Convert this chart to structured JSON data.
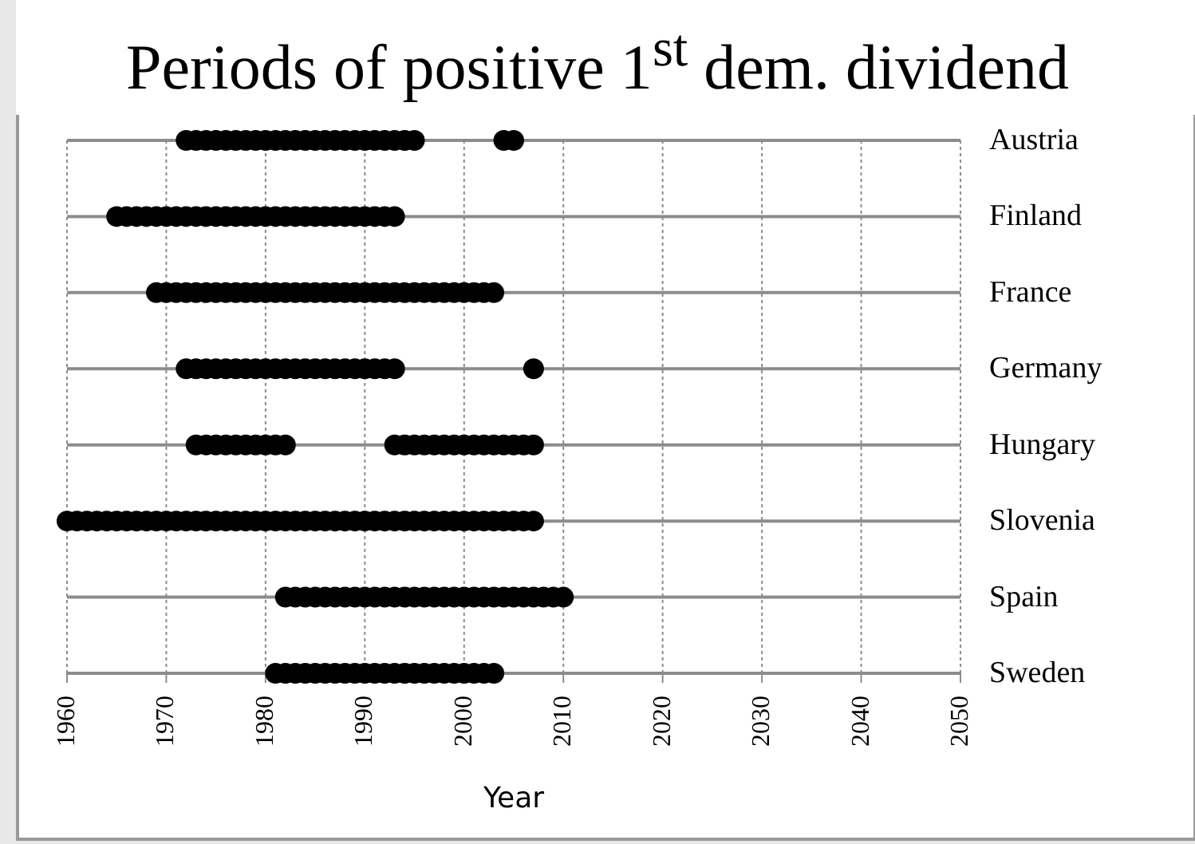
{
  "chart_data": {
    "type": "scatter",
    "orientation": "horizontal",
    "title": "Periods of positive 1$^{st}$ dem. dividend",
    "xlabel": "Year",
    "categories": [
      "Austria",
      "Finland",
      "France",
      "Germany",
      "Hungary",
      "Slovenia",
      "Spain",
      "Sweden"
    ],
    "xlim": [
      1960,
      2050
    ],
    "xticks": [
      1960,
      1970,
      1980,
      1990,
      2000,
      2010,
      2020,
      2030,
      2040,
      2050
    ],
    "grid": true,
    "marker": "circle",
    "series": [
      {
        "color": "#000000",
        "x": [
          "Austria",
          "Austria",
          "Austria",
          "Austria",
          "Austria",
          "Austria",
          "Austria",
          "Austria",
          "Austria",
          "Austria",
          "Austria",
          "Austria",
          "Austria",
          "Austria",
          "Austria",
          "Austria",
          "Austria",
          "Austria",
          "Austria",
          "Austria",
          "Austria",
          "Austria",
          "Austria",
          "Austria",
          "Austria",
          "Austria"
        ],
        "values": [
          1972,
          1973,
          1974,
          1975,
          1976,
          1977,
          1978,
          1979,
          1980,
          1981,
          1982,
          1983,
          1984,
          1985,
          1986,
          1987,
          1988,
          1989,
          1990,
          1991,
          1992,
          1993,
          1994,
          1995,
          2004,
          2005
        ]
      },
      {
        "color": "#000000",
        "x": [
          "Finland",
          "Finland",
          "Finland",
          "Finland",
          "Finland",
          "Finland",
          "Finland",
          "Finland",
          "Finland",
          "Finland",
          "Finland",
          "Finland",
          "Finland",
          "Finland",
          "Finland",
          "Finland",
          "Finland",
          "Finland",
          "Finland",
          "Finland",
          "Finland",
          "Finland",
          "Finland",
          "Finland",
          "Finland",
          "Finland",
          "Finland",
          "Finland",
          "Finland"
        ],
        "values": [
          1965,
          1966,
          1967,
          1968,
          1969,
          1970,
          1971,
          1972,
          1973,
          1974,
          1975,
          1976,
          1977,
          1978,
          1979,
          1980,
          1981,
          1982,
          1983,
          1984,
          1985,
          1986,
          1987,
          1988,
          1989,
          1990,
          1991,
          1992,
          1993
        ]
      },
      {
        "color": "#000000",
        "x": [
          "France",
          "France",
          "France",
          "France",
          "France",
          "France",
          "France",
          "France",
          "France",
          "France",
          "France",
          "France",
          "France",
          "France",
          "France",
          "France",
          "France",
          "France",
          "France",
          "France",
          "France",
          "France",
          "France",
          "France",
          "France",
          "France",
          "France",
          "France",
          "France",
          "France",
          "France",
          "France",
          "France",
          "France",
          "France"
        ],
        "values": [
          1969,
          1970,
          1971,
          1972,
          1973,
          1974,
          1975,
          1976,
          1977,
          1978,
          1979,
          1980,
          1981,
          1982,
          1983,
          1984,
          1985,
          1986,
          1987,
          1988,
          1989,
          1990,
          1991,
          1992,
          1993,
          1994,
          1995,
          1996,
          1997,
          1998,
          1999,
          2000,
          2001,
          2002,
          2003
        ]
      },
      {
        "color": "#000000",
        "x": [
          "Germany",
          "Germany",
          "Germany",
          "Germany",
          "Germany",
          "Germany",
          "Germany",
          "Germany",
          "Germany",
          "Germany",
          "Germany",
          "Germany",
          "Germany",
          "Germany",
          "Germany",
          "Germany",
          "Germany",
          "Germany",
          "Germany",
          "Germany",
          "Germany",
          "Germany",
          "Germany"
        ],
        "values": [
          1972,
          1973,
          1974,
          1975,
          1976,
          1977,
          1978,
          1979,
          1980,
          1981,
          1982,
          1983,
          1984,
          1985,
          1986,
          1987,
          1988,
          1989,
          1990,
          1991,
          1992,
          1993,
          2007
        ]
      },
      {
        "color": "#000000",
        "x": [
          "Hungary",
          "Hungary",
          "Hungary",
          "Hungary",
          "Hungary",
          "Hungary",
          "Hungary",
          "Hungary",
          "Hungary",
          "Hungary",
          "Hungary",
          "Hungary",
          "Hungary",
          "Hungary",
          "Hungary",
          "Hungary",
          "Hungary",
          "Hungary",
          "Hungary",
          "Hungary",
          "Hungary",
          "Hungary",
          "Hungary",
          "Hungary",
          "Hungary"
        ],
        "values": [
          1973,
          1974,
          1975,
          1976,
          1977,
          1978,
          1979,
          1980,
          1981,
          1982,
          1993,
          1994,
          1995,
          1996,
          1997,
          1998,
          1999,
          2000,
          2001,
          2002,
          2003,
          2004,
          2005,
          2006,
          2007
        ]
      },
      {
        "color": "#000000",
        "x": [
          "Slovenia",
          "Slovenia",
          "Slovenia",
          "Slovenia",
          "Slovenia",
          "Slovenia",
          "Slovenia",
          "Slovenia",
          "Slovenia",
          "Slovenia",
          "Slovenia",
          "Slovenia",
          "Slovenia",
          "Slovenia",
          "Slovenia",
          "Slovenia",
          "Slovenia",
          "Slovenia",
          "Slovenia",
          "Slovenia",
          "Slovenia",
          "Slovenia",
          "Slovenia",
          "Slovenia",
          "Slovenia",
          "Slovenia",
          "Slovenia",
          "Slovenia",
          "Slovenia",
          "Slovenia",
          "Slovenia",
          "Slovenia",
          "Slovenia",
          "Slovenia",
          "Slovenia",
          "Slovenia",
          "Slovenia",
          "Slovenia",
          "Slovenia",
          "Slovenia",
          "Slovenia",
          "Slovenia",
          "Slovenia",
          "Slovenia",
          "Slovenia",
          "Slovenia",
          "Slovenia",
          "Slovenia"
        ],
        "values": [
          1960,
          1961,
          1962,
          1963,
          1964,
          1965,
          1966,
          1967,
          1968,
          1969,
          1970,
          1971,
          1972,
          1973,
          1974,
          1975,
          1976,
          1977,
          1978,
          1979,
          1980,
          1981,
          1982,
          1983,
          1984,
          1985,
          1986,
          1987,
          1988,
          1989,
          1990,
          1991,
          1992,
          1993,
          1994,
          1995,
          1996,
          1997,
          1998,
          1999,
          2000,
          2001,
          2002,
          2003,
          2004,
          2005,
          2006,
          2007
        ]
      },
      {
        "color": "#000000",
        "x": [
          "Spain",
          "Spain",
          "Spain",
          "Spain",
          "Spain",
          "Spain",
          "Spain",
          "Spain",
          "Spain",
          "Spain",
          "Spain",
          "Spain",
          "Spain",
          "Spain",
          "Spain",
          "Spain",
          "Spain",
          "Spain",
          "Spain",
          "Spain",
          "Spain",
          "Spain",
          "Spain",
          "Spain",
          "Spain",
          "Spain",
          "Spain",
          "Spain",
          "Spain"
        ],
        "values": [
          1982,
          1983,
          1984,
          1985,
          1986,
          1987,
          1988,
          1989,
          1990,
          1991,
          1992,
          1993,
          1994,
          1995,
          1996,
          1997,
          1998,
          1999,
          2000,
          2001,
          2002,
          2003,
          2004,
          2005,
          2006,
          2007,
          2008,
          2009,
          2010
        ]
      },
      {
        "color": "#000000",
        "x": [
          "Sweden",
          "Sweden",
          "Sweden",
          "Sweden",
          "Sweden",
          "Sweden",
          "Sweden",
          "Sweden",
          "Sweden",
          "Sweden",
          "Sweden",
          "Sweden",
          "Sweden",
          "Sweden",
          "Sweden",
          "Sweden",
          "Sweden",
          "Sweden",
          "Sweden",
          "Sweden",
          "Sweden",
          "Sweden",
          "Sweden"
        ],
        "values": [
          1981,
          1982,
          1983,
          1984,
          1985,
          1986,
          1987,
          1988,
          1989,
          1990,
          1991,
          1992,
          1993,
          1994,
          1995,
          1996,
          1997,
          1998,
          1999,
          2000,
          2001,
          2002,
          2003
        ]
      }
    ]
  }
}
